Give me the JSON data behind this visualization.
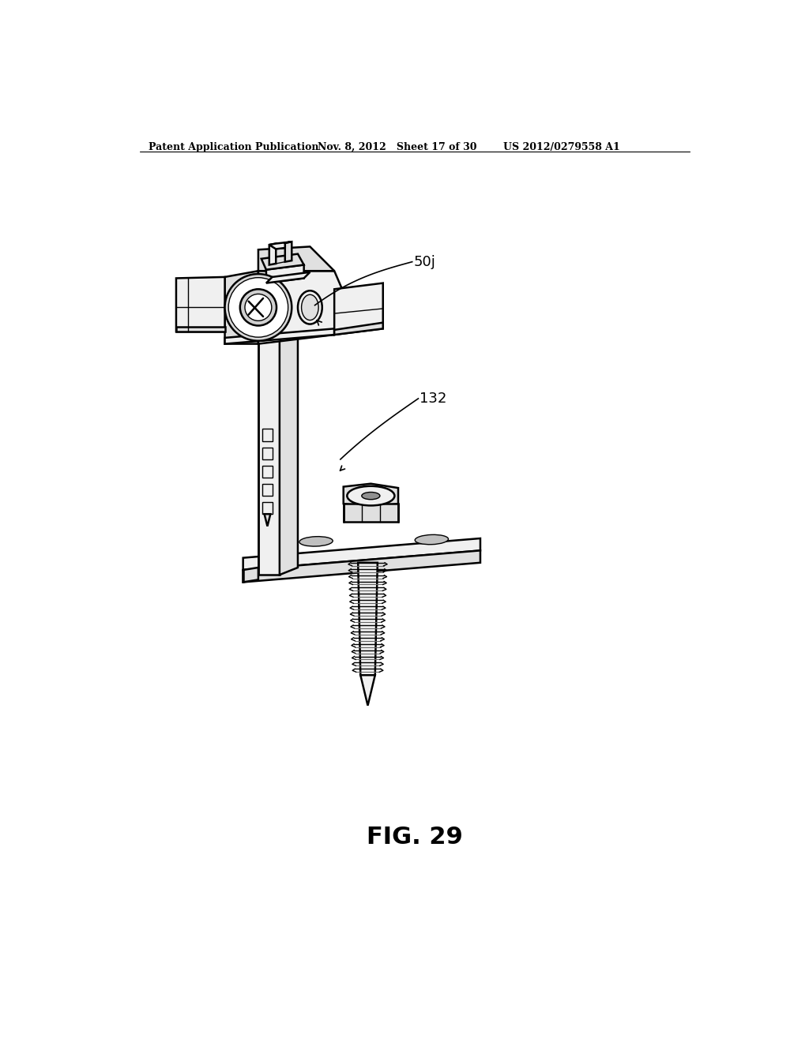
{
  "bg_color": "#ffffff",
  "line_color": "#000000",
  "fill_light": "#f0f0f0",
  "fill_mid": "#e0e0e0",
  "fill_dark": "#c8c8c8",
  "fill_darker": "#b0b0b0",
  "header_left": "Patent Application Publication",
  "header_mid": "Nov. 8, 2012   Sheet 17 of 30",
  "header_right": "US 2012/0279558 A1",
  "fig_label": "FIG. 29",
  "label_50j": "50j",
  "label_132": "132"
}
